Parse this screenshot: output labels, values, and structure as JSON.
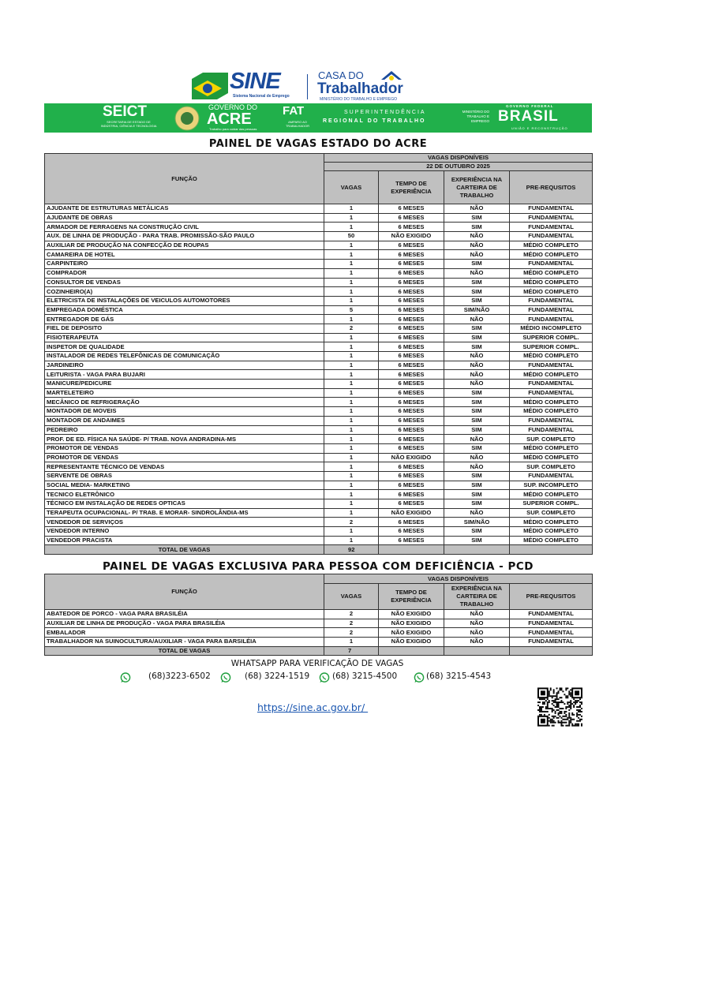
{
  "header": {
    "sine": "SINE",
    "sine_sub": "Sistema Nacional de Emprego",
    "casa_do": "CASA DO",
    "trabalhador": "Trabalhador",
    "ministerio": "MINISTÉRIO DO TRABALHO E EMPREGO",
    "seict": "SEICT",
    "seict_sub": "SECRETARIA DE ESTADO DE INDÚSTRIA, CIÊNCIA E TECNOLOGIA",
    "gov_do": "GOVERNO DO",
    "acre": "ACRE",
    "acre_sub": "Trabalho para cuidar das pessoas",
    "fat": "FAT",
    "fat_sub": "AMPARO AO TRABALHADOR",
    "sup1": "SUPERINTENDÊNCIA",
    "sup2": "REGIONAL DO TRABALHO",
    "mte": "MINISTÉRIO DO TRABALHO E EMPREGO",
    "gov_federal": "GOVERNO FEDERAL",
    "brasil": "BRASIL",
    "brasil_sub": "UNIÃO E RECONSTRUÇÃO",
    "green": "#21b04b"
  },
  "main": {
    "title": "PAINEL DE VAGAS ESTADO DO ACRE",
    "col_funcao": "FUNÇÃO",
    "vagas_disp": "VAGAS DISPONÍVEIS",
    "date": "22 DE OUTUBRO 2025",
    "cols": [
      "VAGAS",
      "TEMPO DE EXPERIÊNCIA",
      "EXPERIÊNCIA NA CARTEIRA DE TRABALHO",
      "PRE-REQUSITOS"
    ],
    "rows": [
      [
        "AJUDANTE DE ESTRUTURAS METÁLICAS",
        "1",
        "6 MESES",
        "NÃO",
        "FUNDAMENTAL"
      ],
      [
        "AJUDANTE DE OBRAS",
        "1",
        "6 MESES",
        "SIM",
        "FUNDAMENTAL"
      ],
      [
        "ARMADOR DE FERRAGENS NA CONSTRUÇÃO CIVIL",
        "1",
        "6 MESES",
        "SIM",
        "FUNDAMENTAL"
      ],
      [
        "AUX. DE LINHA DE PRODUÇÃO - PARA TRAB. PROMISSÃO-SÃO PAULO",
        "50",
        "NÃO EXIGIDO",
        "NÃO",
        "FUNDAMENTAL"
      ],
      [
        "AUXILIAR DE PRODUÇÃO NA CONFECÇÃO DE ROUPAS",
        "1",
        "6 MESES",
        "NÃO",
        "MÉDIO COMPLETO"
      ],
      [
        "CAMAREIRA DE HOTEL",
        "1",
        "6 MESES",
        "NÃO",
        "MÉDIO COMPLETO"
      ],
      [
        "CARPINTEIRO",
        "1",
        "6 MESES",
        "SIM",
        "FUNDAMENTAL"
      ],
      [
        "COMPRADOR",
        "1",
        "6 MESES",
        "NÃO",
        "MÉDIO COMPLETO"
      ],
      [
        "CONSULTOR DE VENDAS",
        "1",
        "6 MESES",
        "SIM",
        "MÉDIO COMPLETO"
      ],
      [
        "COZINHEIRO(A)",
        "1",
        "6 MESES",
        "SIM",
        "MÉDIO COMPLETO"
      ],
      [
        "ELETRICISTA DE INSTALAÇÕES DE VEICULOS AUTOMOTORES",
        "1",
        "6 MESES",
        "SIM",
        "FUNDAMENTAL"
      ],
      [
        "EMPREGADA DOMÉSTICA",
        "5",
        "6 MESES",
        "SIM/NÃO",
        "FUNDAMENTAL"
      ],
      [
        "ENTREGADOR DE GÁS",
        "1",
        "6 MESES",
        "NÃO",
        "FUNDAMENTAL"
      ],
      [
        "FIEL DE DEPOSITO",
        "2",
        "6 MESES",
        "SIM",
        "MÉDIO INCOMPLETO"
      ],
      [
        "FISIOTERAPEUTA",
        "1",
        "6 MESES",
        "SIM",
        "SUPERIOR COMPL."
      ],
      [
        "INSPETOR DE QUALIDADE",
        "1",
        "6 MESES",
        "SIM",
        "SUPERIOR COMPL."
      ],
      [
        "INSTALADOR DE REDES TELEFÔNICAS  DE COMUNICAÇÃO",
        "1",
        "6 MESES",
        "NÃO",
        "MÉDIO COMPLETO"
      ],
      [
        "JARDINEIRO",
        "1",
        "6 MESES",
        "NÃO",
        "FUNDAMENTAL"
      ],
      [
        "LEITURISTA - VAGA PARA BUJARI",
        "1",
        "6 MESES",
        "NÃO",
        "MÉDIO COMPLETO"
      ],
      [
        "MANICURE/PEDICURE",
        "1",
        "6 MESES",
        "NÃO",
        "FUNDAMENTAL"
      ],
      [
        "MARTELETEIRO",
        "1",
        "6 MESES",
        "SIM",
        "FUNDAMENTAL"
      ],
      [
        "MECÂNICO DE REFRIGERAÇÃO",
        "1",
        "6 MESES",
        "SIM",
        "MÉDIO COMPLETO"
      ],
      [
        "MONTADOR DE MOVEIS",
        "1",
        "6 MESES",
        "SIM",
        "MÉDIO COMPLETO"
      ],
      [
        "MONTADOR DE ANDAIMES",
        "1",
        "6 MESES",
        "SIM",
        "FUNDAMENTAL"
      ],
      [
        "PEDREIRO",
        "1",
        "6 MESES",
        "SIM",
        "FUNDAMENTAL"
      ],
      [
        "PROF. DE ED. FÍSICA NA SAÚDE- P/ TRAB. NOVA ANDRADINA-MS",
        "1",
        "6 MESES",
        "NÃO",
        "SUP. COMPLETO"
      ],
      [
        "PROMOTOR DE VENDAS",
        "1",
        "6 MESES",
        "SIM",
        "MÉDIO COMPLETO"
      ],
      [
        "PROMOTOR DE VENDAS",
        "1",
        "NÃO EXIGIDO",
        "NÃO",
        "MÉDIO COMPLETO"
      ],
      [
        "REPRESENTANTE TÉCNICO DE VENDAS",
        "1",
        "6 MESES",
        "NÃO",
        "SUP. COMPLETO"
      ],
      [
        "SERVENTE DE OBRAS",
        "1",
        "6 MESES",
        "SIM",
        "FUNDAMENTAL"
      ],
      [
        "SOCIAL MEDIA- MARKETING",
        "1",
        "6 MESES",
        "SIM",
        "SUP. INCOMPLETO"
      ],
      [
        "TECNICO ELETRÔNICO",
        "1",
        "6 MESES",
        "SIM",
        "MÉDIO COMPLETO"
      ],
      [
        "TÉCNICO EM INSTALAÇÃO DE REDES OPTICAS",
        "1",
        "6 MESES",
        "SIM",
        "SUPERIOR COMPL."
      ],
      [
        "TERAPEUTA OCUPACIONAL- P/ TRAB. E MORAR- SINDROLÂNDIA-MS",
        "1",
        "NÃO EXIGIDO",
        "NÃO",
        "SUP. COMPLETO"
      ],
      [
        "VENDEDOR DE SERVIÇOS",
        "2",
        "6 MESES",
        "SIM/NÃO",
        "MÉDIO COMPLETO"
      ],
      [
        "VENDEDOR INTERNO",
        "1",
        "6 MESES",
        "SIM",
        "MÉDIO COMPLETO"
      ],
      [
        "VENDEDOR PRACISTA",
        "1",
        "6 MESES",
        "SIM",
        "MÉDIO COMPLETO"
      ]
    ],
    "total_label": "TOTAL DE VAGAS",
    "total": "92"
  },
  "pcd": {
    "title": "PAINEL DE VAGAS EXCLUSIVA PARA PESSOA COM DEFICIÊNCIA - PCD",
    "col_funcao": "FUNÇÃO",
    "vagas_disp": "VAGAS DISPONÍVEIS",
    "cols": [
      "VAGAS",
      "TEMPO DE EXPERIÊNCIA",
      "EXPERIÊNCIA NA CARTEIRA DE TRABALHO",
      "PRE-REQUSITOS"
    ],
    "rows": [
      [
        "ABATEDOR DE PORCO - VAGA PARA BRASILÉIA",
        "2",
        "NÃO EXIGIDO",
        "NÃO",
        "FUNDAMENTAL"
      ],
      [
        "AUXILIAR DE LINHA DE PRODUÇÃO - VAGA PARA BRASILÉIA",
        "2",
        "NÃO EXIGIDO",
        "NÃO",
        "FUNDAMENTAL"
      ],
      [
        "EMBALADOR",
        "2",
        "NÃO EXIGIDO",
        "NÃO",
        "FUNDAMENTAL"
      ],
      [
        "TRABALHADOR NA SUINOCULTURA/AUXILIAR - VAGA PARA BARSILÉIA",
        "1",
        "NÃO EXIGIDO",
        "NÃO",
        "FUNDAMENTAL"
      ]
    ],
    "total_label": "TOTAL DE VAGAS",
    "total": "7"
  },
  "footer": {
    "whatsapp_title": "WHATSAPP PARA VERIFICAÇÃO DE VAGAS",
    "phones": [
      "(68)3223-6502",
      "(68) 3224-1519",
      "(68) 3215-4500",
      "(68) 3215-4543"
    ],
    "url": "https://sine.ac.gov.br/ ",
    "icon": "whatsapp-icon",
    "qr_icon": "qr-code-icon"
  }
}
